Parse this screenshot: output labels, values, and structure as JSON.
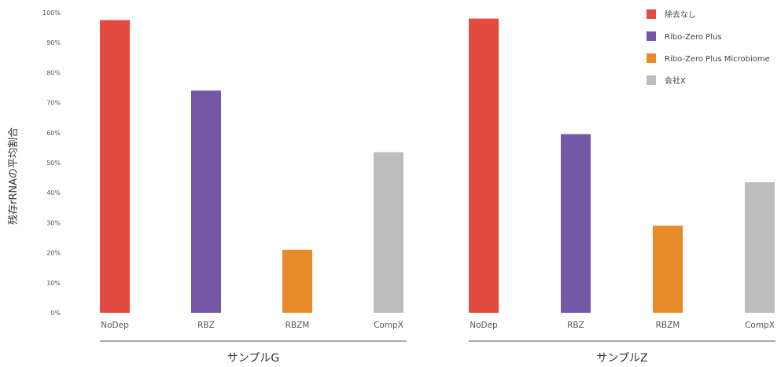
{
  "chart_data": {
    "type": "bar",
    "ylabel": "残存rRNAの平均割合",
    "ylim": [
      0,
      100
    ],
    "yticks": [
      0,
      10,
      20,
      30,
      40,
      50,
      60,
      70,
      80,
      90,
      100
    ],
    "ytick_labels": [
      "0%",
      "10%",
      "20%",
      "30%",
      "40%",
      "50%",
      "60%",
      "70%",
      "80%",
      "90%",
      "100%"
    ],
    "categories": [
      "NoDep",
      "RBZ",
      "RBZM",
      "CompX"
    ],
    "groups": [
      {
        "label": "サンプルG",
        "values": [
          97.5,
          74,
          21,
          53.5
        ]
      },
      {
        "label": "サンプルZ",
        "values": [
          98,
          59.5,
          29,
          43.5
        ]
      }
    ],
    "series": [
      {
        "name": "除去なし",
        "color": "#e34b40"
      },
      {
        "name": "Ribo-Zero Plus",
        "color": "#7457a6"
      },
      {
        "name": "Ribo-Zero Plus Microbiome",
        "color": "#e8892a"
      },
      {
        "name": "会社X",
        "color": "#bdbdbd"
      }
    ],
    "legend_position": "top-right",
    "grid": false
  }
}
